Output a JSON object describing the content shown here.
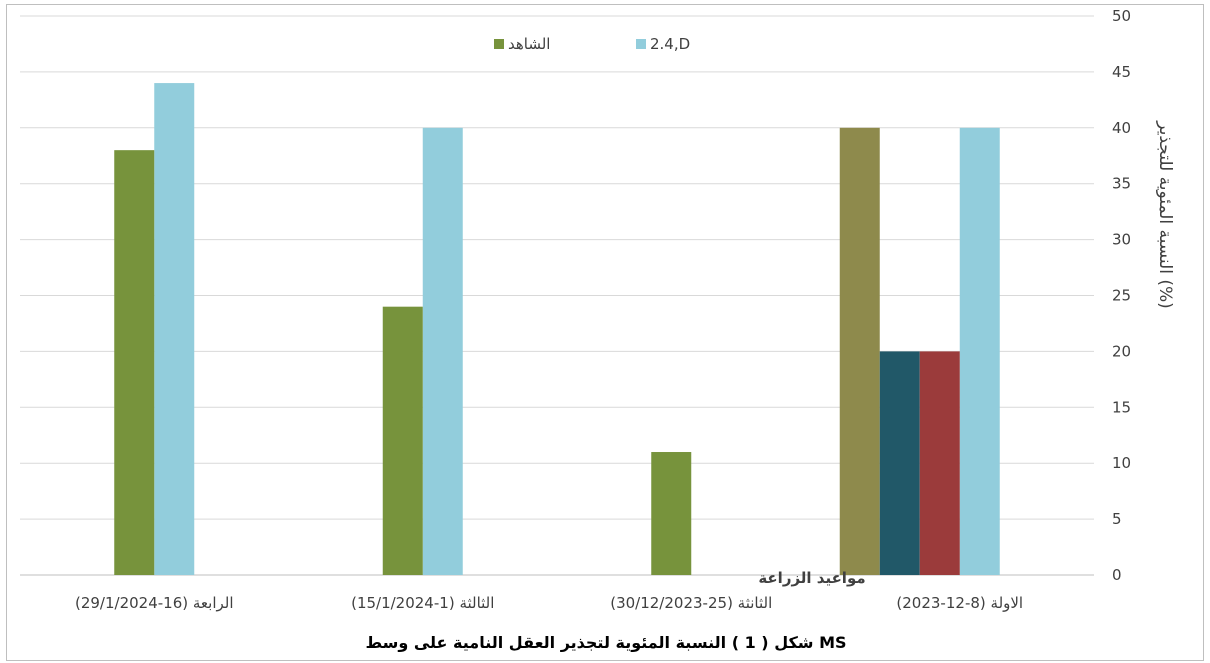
{
  "chart_data": {
    "type": "bar",
    "categories": [
      "الاولة (8-12-2023)",
      "الثانثة (25-30/12/2023)",
      "الثالثة (1-15/1/2024)",
      "الرابعة (16-29/1/2024)"
    ],
    "series": [
      {
        "name": "2.4,D",
        "color": "#92CDDC",
        "values": [
          40,
          null,
          40,
          44
        ]
      },
      {
        "name": "الشاهد",
        "color": "#77933C",
        "values": [
          null,
          11,
          24,
          38
        ]
      }
    ],
    "extra_bars": [
      {
        "category_index": 0,
        "color": "#8E8A4C",
        "value": 40
      },
      {
        "category_index": 0,
        "color": "#215868",
        "value": 20
      },
      {
        "category_index": 0,
        "color": "#9B3B3B",
        "value": 20
      }
    ],
    "ylim": [
      0,
      50
    ],
    "yticks": [
      0,
      5,
      10,
      15,
      20,
      25,
      30,
      35,
      40,
      45,
      50
    ],
    "ylabel": "النسبة المئوية للتجذير (%)",
    "xlabel": "مواعيد الزراعة",
    "yaxis_position": "right",
    "grid": true,
    "legend_position": "top"
  },
  "caption": "شكل ( 1 ) النسبة المئوية لتجذير العقل النامية على وسط MS"
}
